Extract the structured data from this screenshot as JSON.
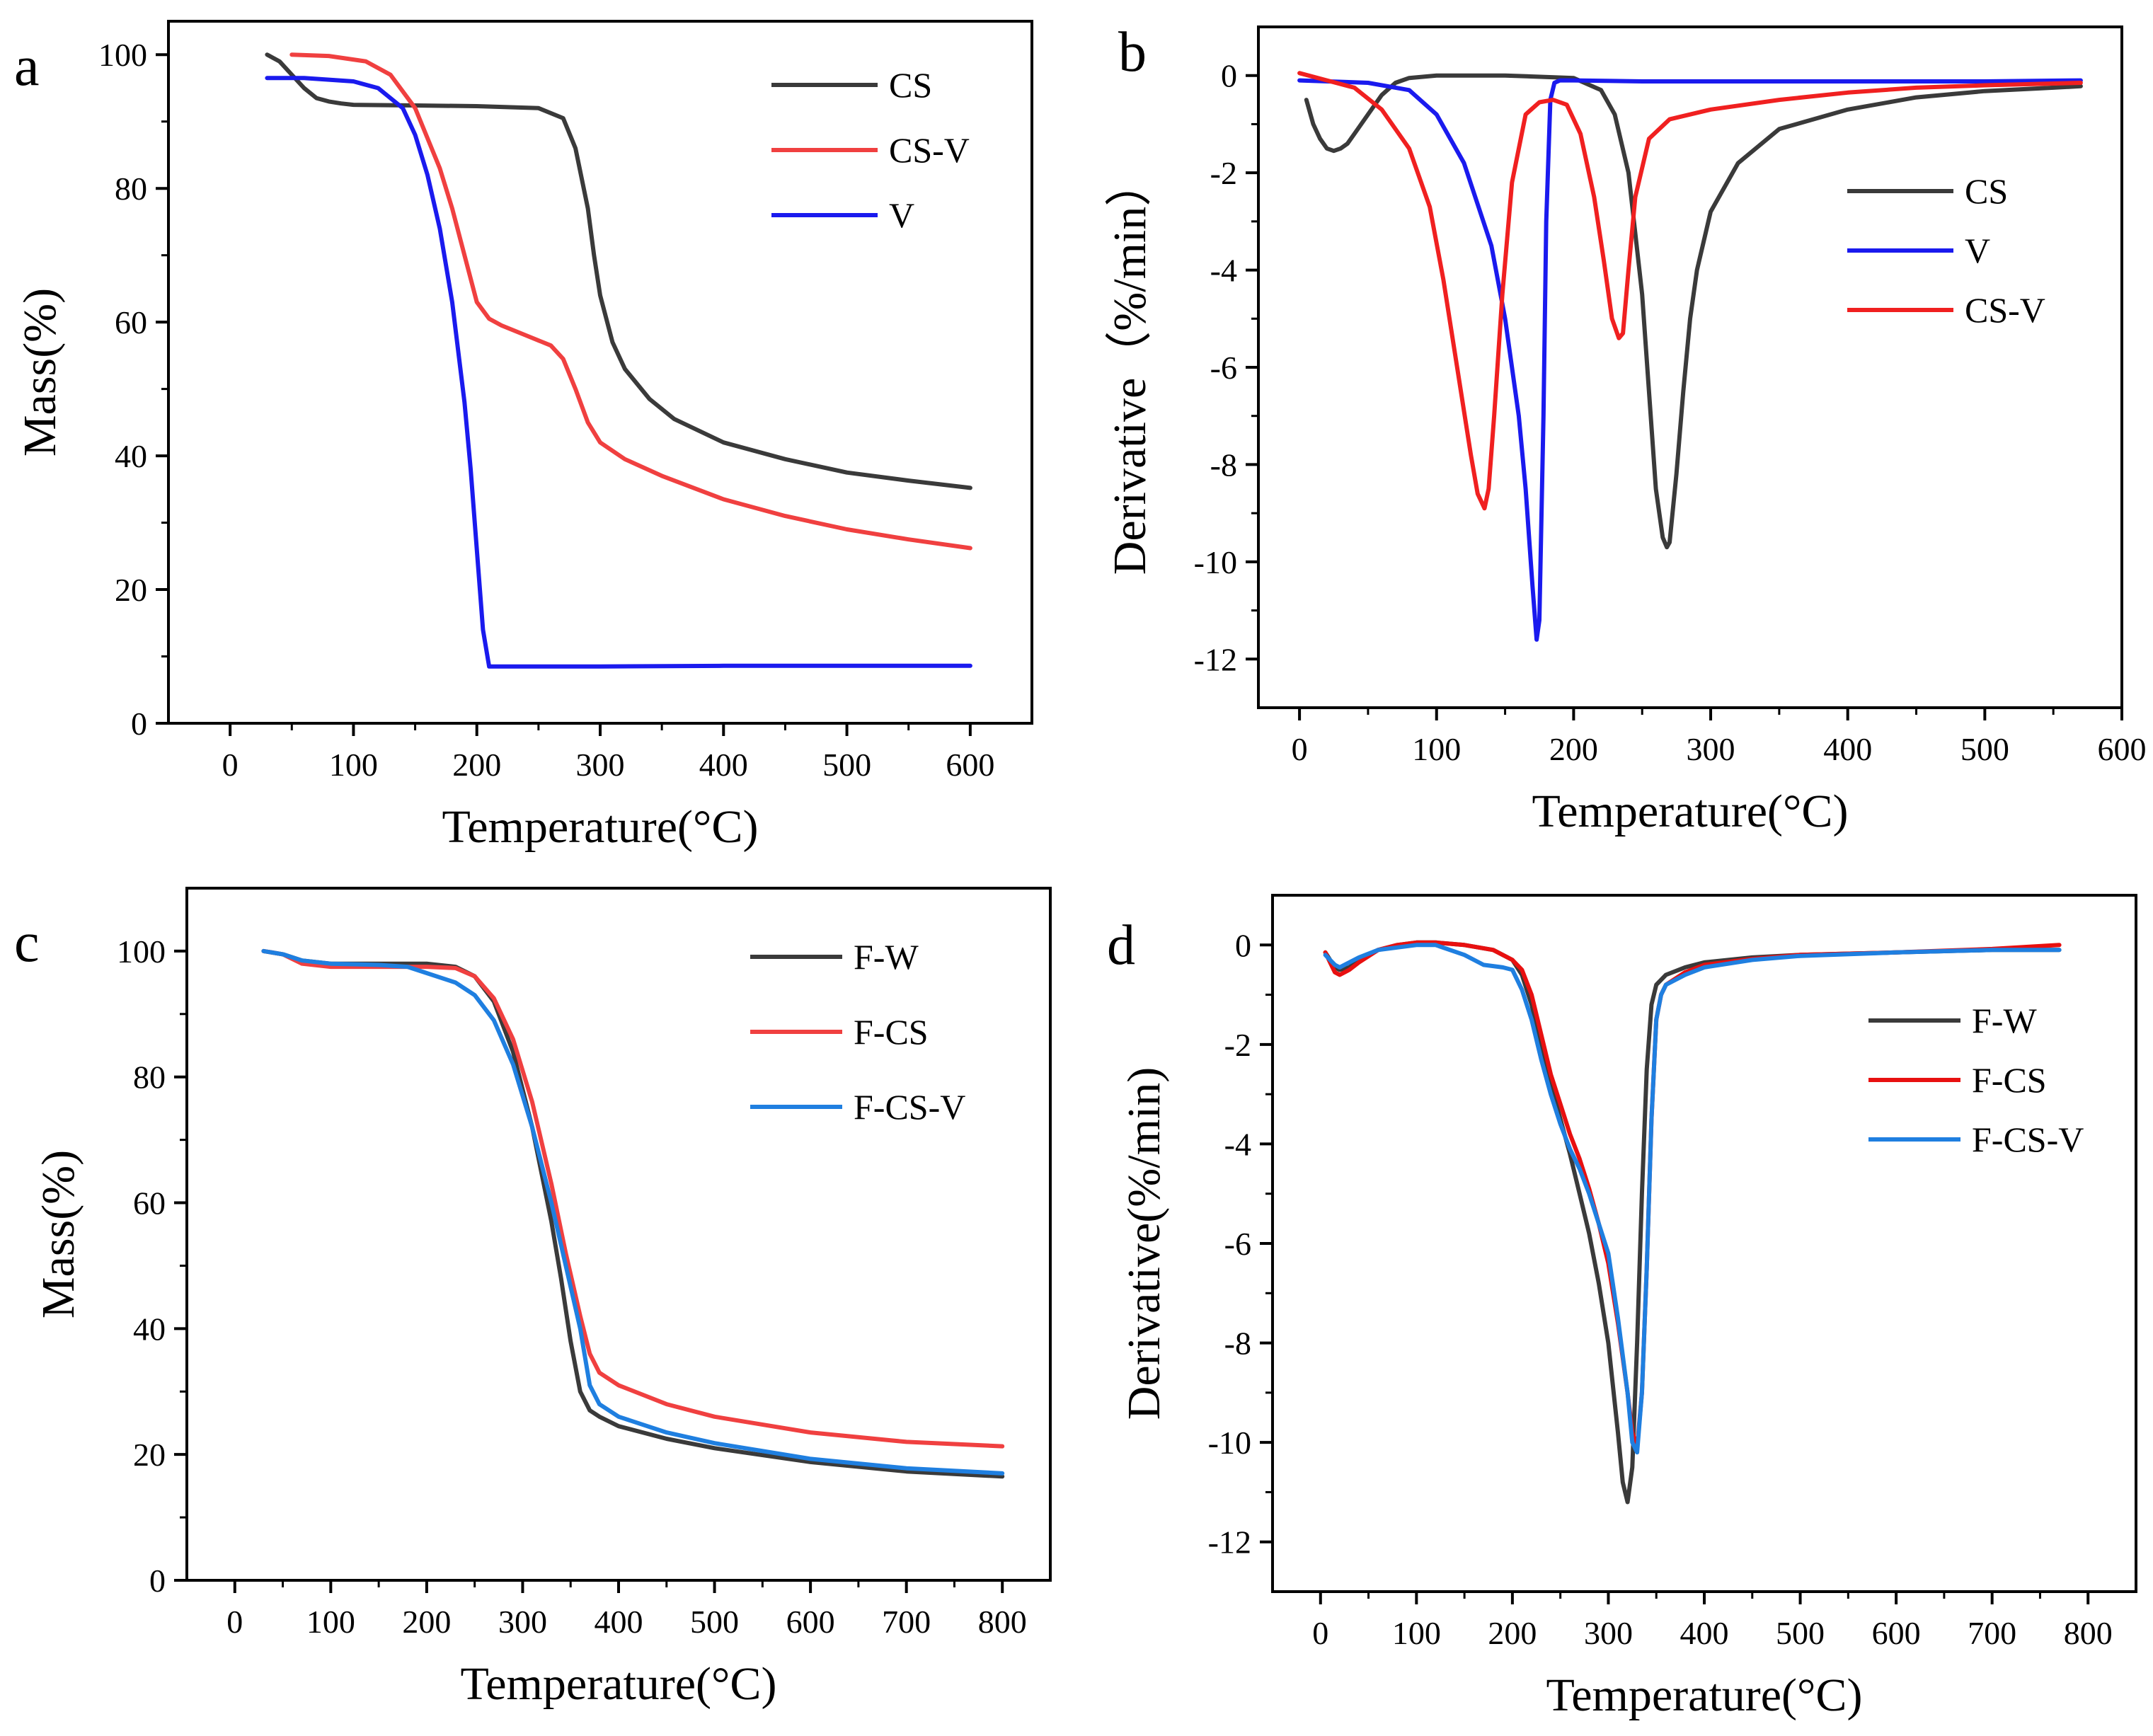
{
  "chart_data": [
    {
      "panel": "a",
      "type": "line",
      "xlabel": "Temperature(°C)",
      "ylabel": "Mass(%)",
      "xlim": [
        -50,
        650
      ],
      "ylim": [
        0,
        105
      ],
      "xticks": [
        0,
        100,
        200,
        300,
        400,
        500,
        600
      ],
      "yticks": [
        0,
        20,
        40,
        60,
        80,
        100
      ],
      "grid": false,
      "legend_position": "top-right",
      "series": [
        {
          "name": "CS",
          "color": "#3a3a3a",
          "x": [
            30,
            40,
            50,
            60,
            70,
            80,
            90,
            100,
            150,
            200,
            250,
            270,
            280,
            290,
            295,
            300,
            310,
            320,
            340,
            360,
            400,
            450,
            500,
            550,
            600
          ],
          "y": [
            100,
            99,
            97,
            95,
            93.5,
            93,
            92.7,
            92.5,
            92.4,
            92.3,
            92,
            90.5,
            86,
            77,
            70,
            64,
            57,
            53,
            48.5,
            45.5,
            42,
            39.5,
            37.5,
            36.3,
            35.2
          ]
        },
        {
          "name": "CS-V",
          "color": "#f04040",
          "x": [
            50,
            80,
            110,
            130,
            150,
            170,
            180,
            190,
            200,
            210,
            220,
            240,
            260,
            270,
            280,
            290,
            300,
            320,
            350,
            400,
            450,
            500,
            550,
            600
          ],
          "y": [
            100,
            99.8,
            99,
            97,
            92,
            83,
            77,
            70,
            63,
            60.5,
            59.5,
            58,
            56.5,
            54.5,
            50,
            45,
            42,
            39.5,
            37,
            33.5,
            31,
            29,
            27.5,
            26.2
          ]
        },
        {
          "name": "V",
          "color": "#1a1aee",
          "x": [
            30,
            60,
            100,
            120,
            140,
            150,
            160,
            170,
            180,
            190,
            195,
            200,
            205,
            210,
            250,
            300,
            400,
            500,
            600
          ],
          "y": [
            96.5,
            96.5,
            96,
            95,
            92,
            88,
            82,
            74,
            63,
            48,
            38,
            26,
            14,
            8.5,
            8.5,
            8.5,
            8.6,
            8.6,
            8.6
          ]
        }
      ]
    },
    {
      "panel": "b",
      "type": "line",
      "xlabel": "Temperature(°C)",
      "ylabel": "Derivative（%/min）",
      "xlim": [
        -30,
        600
      ],
      "ylim": [
        -13,
        1
      ],
      "xticks": [
        0,
        100,
        200,
        300,
        400,
        500,
        600
      ],
      "yticks": [
        -12,
        -10,
        -8,
        -6,
        -4,
        -2,
        0
      ],
      "grid": false,
      "legend_position": "center-right",
      "series": [
        {
          "name": "CS",
          "color": "#3a3a3a",
          "x": [
            5,
            10,
            15,
            20,
            25,
            30,
            35,
            40,
            50,
            60,
            70,
            80,
            100,
            150,
            200,
            220,
            230,
            240,
            250,
            255,
            260,
            265,
            268,
            270,
            275,
            280,
            285,
            290,
            300,
            320,
            350,
            400,
            450,
            500,
            550,
            570
          ],
          "y": [
            -0.5,
            -1,
            -1.3,
            -1.5,
            -1.55,
            -1.5,
            -1.4,
            -1.2,
            -0.8,
            -0.4,
            -0.15,
            -0.05,
            0,
            0,
            -0.05,
            -0.3,
            -0.8,
            -2,
            -4.5,
            -6.5,
            -8.5,
            -9.5,
            -9.7,
            -9.6,
            -8.2,
            -6.5,
            -5,
            -4,
            -2.8,
            -1.8,
            -1.1,
            -0.7,
            -0.45,
            -0.32,
            -0.25,
            -0.22
          ]
        },
        {
          "name": "V",
          "color": "#1a1aee",
          "x": [
            0,
            50,
            80,
            100,
            120,
            140,
            150,
            160,
            165,
            170,
            173,
            175,
            178,
            180,
            183,
            186,
            190,
            200,
            250,
            300,
            400,
            500,
            570
          ],
          "y": [
            -0.1,
            -0.15,
            -0.3,
            -0.8,
            -1.8,
            -3.5,
            -5,
            -7,
            -8.5,
            -10.5,
            -11.6,
            -11.2,
            -7,
            -3,
            -0.5,
            -0.15,
            -0.1,
            -0.1,
            -0.12,
            -0.12,
            -0.12,
            -0.12,
            -0.1
          ]
        },
        {
          "name": "CS-V",
          "color": "#f02020",
          "x": [
            0,
            20,
            40,
            60,
            80,
            95,
            105,
            115,
            125,
            130,
            135,
            138,
            142,
            148,
            155,
            165,
            175,
            185,
            195,
            205,
            215,
            222,
            228,
            233,
            236,
            240,
            245,
            255,
            270,
            300,
            350,
            400,
            450,
            500,
            570
          ],
          "y": [
            0.05,
            -0.1,
            -0.25,
            -0.7,
            -1.5,
            -2.7,
            -4.2,
            -6,
            -7.8,
            -8.6,
            -8.9,
            -8.5,
            -7,
            -4.5,
            -2.2,
            -0.8,
            -0.55,
            -0.5,
            -0.6,
            -1.2,
            -2.5,
            -3.8,
            -5,
            -5.4,
            -5.3,
            -4,
            -2.5,
            -1.3,
            -0.9,
            -0.7,
            -0.5,
            -0.35,
            -0.25,
            -0.2,
            -0.15
          ]
        }
      ]
    },
    {
      "panel": "c",
      "type": "line",
      "xlabel": "Temperature(°C)",
      "ylabel": "Mass(%)",
      "xlim": [
        -50,
        850
      ],
      "ylim": [
        0,
        110
      ],
      "xticks": [
        0,
        100,
        200,
        300,
        400,
        500,
        600,
        700,
        800
      ],
      "yticks": [
        0,
        20,
        40,
        60,
        80,
        100
      ],
      "grid": false,
      "legend_position": "top-right",
      "series": [
        {
          "name": "F-W",
          "color": "#3a3a3a",
          "x": [
            30,
            50,
            70,
            100,
            150,
            200,
            230,
            250,
            270,
            290,
            310,
            330,
            340,
            350,
            360,
            370,
            380,
            400,
            450,
            500,
            600,
            700,
            800
          ],
          "y": [
            100,
            99.5,
            98.5,
            98,
            98,
            98,
            97.5,
            96,
            92,
            84,
            72,
            57,
            48,
            38,
            30,
            27,
            26,
            24.5,
            22.5,
            21,
            18.8,
            17.3,
            16.5
          ]
        },
        {
          "name": "F-CS",
          "color": "#f04040",
          "x": [
            30,
            50,
            70,
            100,
            150,
            200,
            230,
            250,
            270,
            290,
            310,
            330,
            345,
            360,
            370,
            380,
            400,
            450,
            500,
            600,
            700,
            800
          ],
          "y": [
            100,
            99.5,
            98,
            97.5,
            97.5,
            97.5,
            97.3,
            96,
            92.5,
            86,
            76,
            63,
            52,
            42,
            36,
            33,
            31,
            28,
            26,
            23.5,
            22,
            21.3
          ]
        },
        {
          "name": "F-CS-V",
          "color": "#1f7fe0",
          "x": [
            30,
            50,
            70,
            100,
            150,
            180,
            200,
            230,
            250,
            270,
            290,
            310,
            330,
            345,
            360,
            370,
            380,
            400,
            450,
            500,
            600,
            700,
            800
          ],
          "y": [
            100,
            99.5,
            98.5,
            98,
            97.8,
            97.5,
            96.5,
            95,
            93,
            89,
            82,
            72,
            60,
            50,
            40,
            31,
            28,
            26,
            23.5,
            21.8,
            19.3,
            17.8,
            17
          ]
        }
      ]
    },
    {
      "panel": "d",
      "type": "line",
      "xlabel": "Temperature(°C)",
      "ylabel": "Derivative(%/min)",
      "xlim": [
        -50,
        850
      ],
      "ylim": [
        -13,
        1
      ],
      "xticks": [
        0,
        100,
        200,
        300,
        400,
        500,
        600,
        700,
        800
      ],
      "yticks": [
        -12,
        -10,
        -8,
        -6,
        -4,
        -2,
        0
      ],
      "grid": false,
      "legend_position": "center-right",
      "series": [
        {
          "name": "F-W",
          "color": "#3a3a3a",
          "x": [
            5,
            10,
            15,
            20,
            30,
            40,
            60,
            80,
            100,
            120,
            150,
            180,
            200,
            210,
            220,
            230,
            240,
            250,
            260,
            270,
            280,
            290,
            300,
            310,
            315,
            320,
            325,
            330,
            335,
            340,
            345,
            350,
            360,
            380,
            400,
            450,
            500,
            600,
            700,
            770
          ],
          "y": [
            -0.15,
            -0.3,
            -0.45,
            -0.5,
            -0.45,
            -0.3,
            -0.1,
            0,
            0.05,
            0.05,
            0,
            -0.1,
            -0.3,
            -0.6,
            -1.2,
            -2,
            -2.8,
            -3.5,
            -4.2,
            -5,
            -5.8,
            -6.8,
            -8,
            -9.8,
            -10.8,
            -11.2,
            -10.5,
            -8,
            -5,
            -2.5,
            -1.2,
            -0.8,
            -0.6,
            -0.45,
            -0.35,
            -0.25,
            -0.2,
            -0.15,
            -0.1,
            -0.1
          ]
        },
        {
          "name": "F-CS",
          "color": "#e81010",
          "x": [
            5,
            10,
            15,
            20,
            30,
            40,
            60,
            80,
            100,
            120,
            150,
            180,
            200,
            210,
            220,
            230,
            240,
            250,
            260,
            270,
            280,
            290,
            300,
            310,
            320,
            325,
            330,
            335,
            340,
            345,
            350,
            355,
            360,
            380,
            400,
            450,
            500,
            600,
            700,
            770
          ],
          "y": [
            -0.15,
            -0.35,
            -0.55,
            -0.6,
            -0.5,
            -0.35,
            -0.1,
            0,
            0.05,
            0.05,
            0,
            -0.1,
            -0.3,
            -0.5,
            -1,
            -1.8,
            -2.6,
            -3.2,
            -3.8,
            -4.3,
            -4.9,
            -5.6,
            -6.4,
            -7.6,
            -9,
            -9.8,
            -10.1,
            -9,
            -6.5,
            -3.5,
            -1.5,
            -1,
            -0.8,
            -0.55,
            -0.4,
            -0.28,
            -0.2,
            -0.15,
            -0.08,
            0
          ]
        },
        {
          "name": "F-CS-V",
          "color": "#1f7fe0",
          "x": [
            5,
            10,
            15,
            20,
            30,
            40,
            60,
            80,
            100,
            120,
            150,
            170,
            190,
            200,
            210,
            220,
            230,
            240,
            250,
            260,
            270,
            280,
            290,
            300,
            310,
            320,
            325,
            330,
            335,
            340,
            345,
            350,
            355,
            360,
            380,
            400,
            450,
            500,
            600,
            700,
            770
          ],
          "y": [
            -0.2,
            -0.3,
            -0.4,
            -0.45,
            -0.35,
            -0.25,
            -0.1,
            -0.05,
            0,
            0,
            -0.2,
            -0.4,
            -0.45,
            -0.5,
            -0.9,
            -1.5,
            -2.3,
            -3,
            -3.6,
            -4.1,
            -4.5,
            -5,
            -5.6,
            -6.2,
            -7.5,
            -9,
            -10,
            -10.2,
            -9,
            -6.5,
            -3.5,
            -1.5,
            -1,
            -0.8,
            -0.6,
            -0.45,
            -0.3,
            -0.22,
            -0.15,
            -0.1,
            -0.1
          ]
        }
      ]
    }
  ]
}
